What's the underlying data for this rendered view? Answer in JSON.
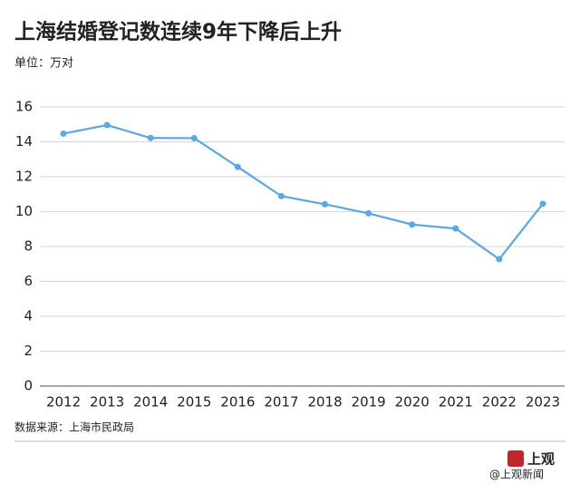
{
  "chart_data": {
    "type": "line",
    "title": "上海结婚登记数连续9年下降后上升",
    "subtitle": "单位：万对",
    "source": "数据来源：上海市民政局",
    "categories": [
      "2012",
      "2013",
      "2014",
      "2015",
      "2016",
      "2017",
      "2018",
      "2019",
      "2020",
      "2021",
      "2022",
      "2023"
    ],
    "series": [
      {
        "name": "结婚登记数",
        "color": "#5aa7e2",
        "values": [
          14.47,
          14.96,
          14.22,
          14.21,
          12.56,
          10.89,
          10.42,
          9.9,
          9.26,
          9.03,
          7.27,
          10.45
        ]
      }
    ],
    "ylim": [
      0,
      16
    ],
    "yticks": [
      0,
      2,
      4,
      6,
      8,
      10,
      12,
      14,
      16
    ],
    "grid": true
  },
  "watermark": {
    "logo": "上观",
    "account": "@上观新闻"
  }
}
